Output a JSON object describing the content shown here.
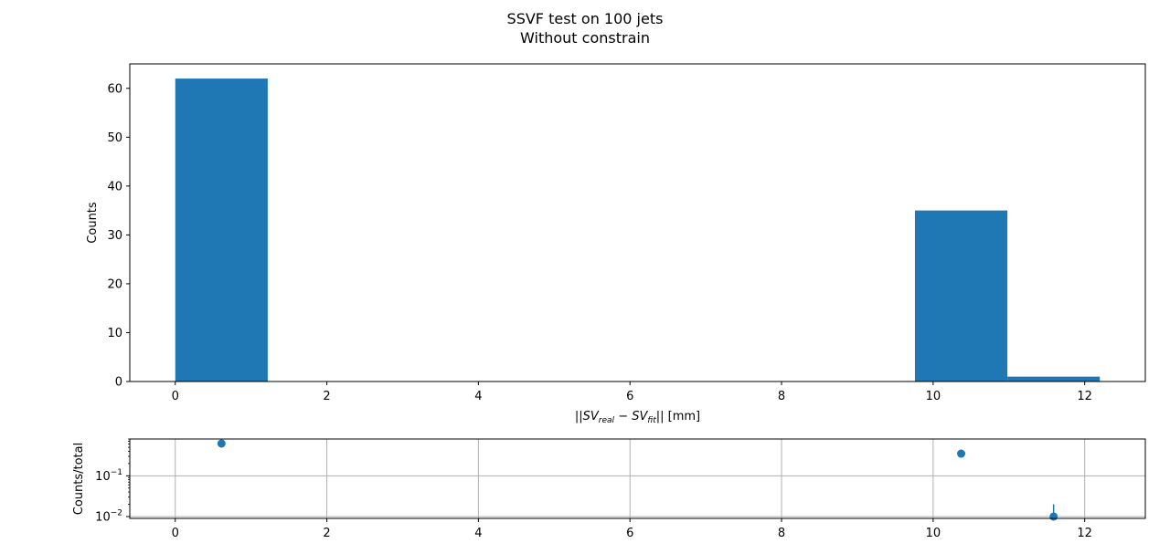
{
  "title": {
    "line1": "SSVF test on 100 jets",
    "line2": "Without constrain"
  },
  "colors": {
    "series": "#1f77b4",
    "grid": "#b0b0b0",
    "axis": "#000000"
  },
  "chart_data": [
    {
      "type": "bar",
      "subtype": "histogram",
      "xlabel": "||SV_real - SV_fit|| [mm]",
      "ylabel": "Counts",
      "xlim": [
        -0.6,
        12.8
      ],
      "ylim": [
        0,
        65
      ],
      "grid": false,
      "x_ticks": [
        0,
        2,
        4,
        6,
        8,
        10,
        12
      ],
      "y_ticks": [
        0,
        10,
        20,
        30,
        40,
        50,
        60
      ],
      "bins": [
        {
          "x0": 0.0,
          "x1": 1.22,
          "count": 62
        },
        {
          "x0": 9.76,
          "x1": 10.98,
          "count": 35
        },
        {
          "x0": 10.98,
          "x1": 12.2,
          "count": 1
        }
      ]
    },
    {
      "type": "scatter",
      "ylabel": "Counts/total",
      "yscale": "log",
      "xlim": [
        -0.6,
        12.8
      ],
      "ylim": [
        0.009,
        0.8
      ],
      "grid": true,
      "x_ticks": [
        0,
        2,
        4,
        6,
        8,
        10,
        12
      ],
      "y_ticks": [
        0.01,
        0.1
      ],
      "points": [
        {
          "x": 0.61,
          "y": 0.62,
          "err": 0.08
        },
        {
          "x": 10.37,
          "y": 0.35,
          "err": 0.06
        },
        {
          "x": 11.59,
          "y": 0.01,
          "err": 0.01
        }
      ]
    }
  ]
}
